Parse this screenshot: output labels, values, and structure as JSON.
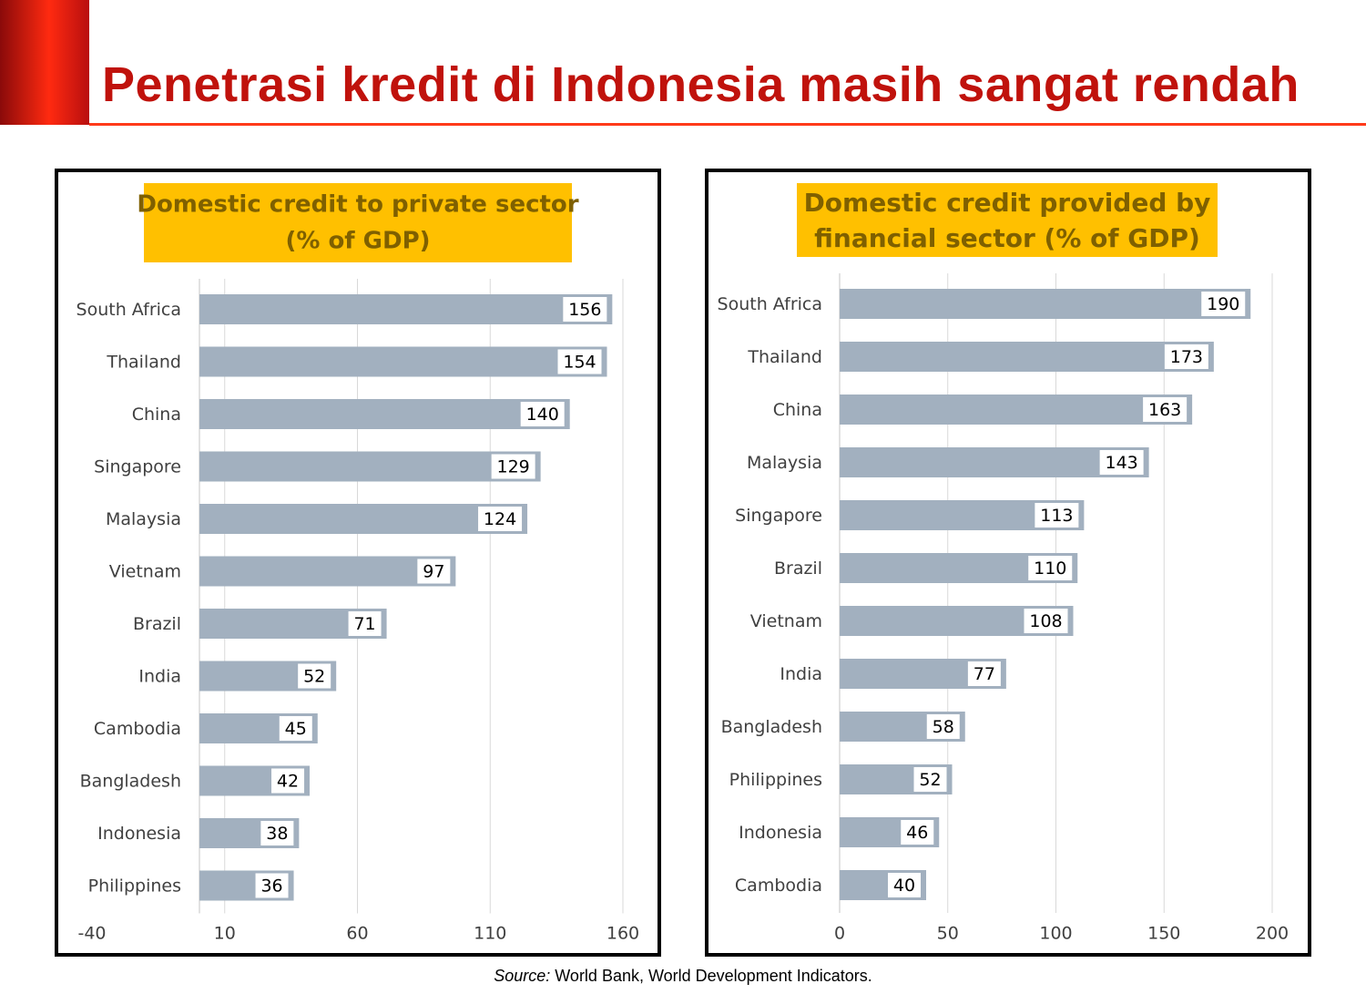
{
  "slide": {
    "title": "Penetrasi kredit di Indonesia masih sangat rendah",
    "source_label": "Source:",
    "source_text": " World Bank, World Development Indicators."
  },
  "colors": {
    "title": "#c0120c",
    "bar": "#a2b0bf",
    "header_bg": "#ffc000",
    "header_text": "#7f6000",
    "accent": "#ff2a10"
  },
  "chart_data": [
    {
      "type": "bar",
      "orientation": "horizontal",
      "title_lines": [
        "Domestic credit  to private sector",
        "(% of GDP)"
      ],
      "categories": [
        "South Africa",
        "Thailand",
        "China",
        "Singapore",
        "Malaysia",
        "Vietnam",
        "Brazil",
        "India",
        "Cambodia",
        "Bangladesh",
        "Indonesia",
        "Philippines"
      ],
      "values": [
        156,
        154,
        140,
        129,
        124,
        97,
        71,
        52,
        45,
        42,
        38,
        36
      ],
      "xlim": [
        -40,
        160
      ],
      "ticks": [
        -40,
        10,
        60,
        110,
        160
      ],
      "grid": true,
      "data_labels": true
    },
    {
      "type": "bar",
      "orientation": "horizontal",
      "title_lines": [
        "Domestic credit provided by",
        "financial sector (% of GDP)"
      ],
      "categories": [
        "South Africa",
        "Thailand",
        "China",
        "Malaysia",
        "Singapore",
        "Brazil",
        "Vietnam",
        "India",
        "Bangladesh",
        "Philippines",
        "Indonesia",
        "Cambodia"
      ],
      "values": [
        190,
        173,
        163,
        143,
        113,
        110,
        108,
        77,
        58,
        52,
        46,
        40
      ],
      "xlim": [
        0,
        200
      ],
      "ticks": [
        0,
        50,
        100,
        150,
        200
      ],
      "grid": true,
      "data_labels": true
    }
  ]
}
